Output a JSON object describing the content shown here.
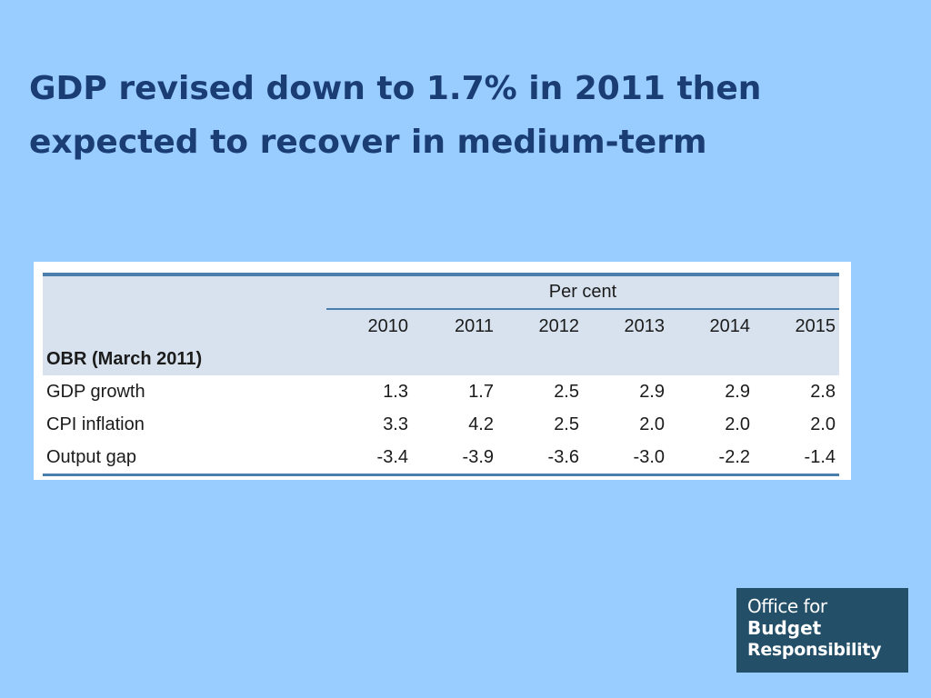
{
  "slide": {
    "title_line1": "GDP revised down to 1.7% in 2011 then",
    "title_line2": "expected to recover in medium-term",
    "background": "#99ccff",
    "title_color": "#1a3d73"
  },
  "table": {
    "unit_label": "Per cent",
    "years": [
      "2010",
      "2011",
      "2012",
      "2013",
      "2014",
      "2015"
    ],
    "section_label": "OBR (March 2011)",
    "rows": [
      {
        "label": "GDP growth",
        "values": [
          "1.3",
          "1.7",
          "2.5",
          "2.9",
          "2.9",
          "2.8"
        ]
      },
      {
        "label": "CPI inflation",
        "values": [
          "3.3",
          "4.2",
          "2.5",
          "2.0",
          "2.0",
          "2.0"
        ]
      },
      {
        "label": "Output gap",
        "values": [
          "-3.4",
          "-3.9",
          "-3.6",
          "-3.0",
          "-2.2",
          "-1.4"
        ]
      }
    ],
    "rule_color": "#4a7fad",
    "shade_color": "#d7e2ee"
  },
  "logo": {
    "line1": "Office for",
    "line2": "Budget",
    "line3": "Responsibility",
    "background": "#234f68"
  }
}
